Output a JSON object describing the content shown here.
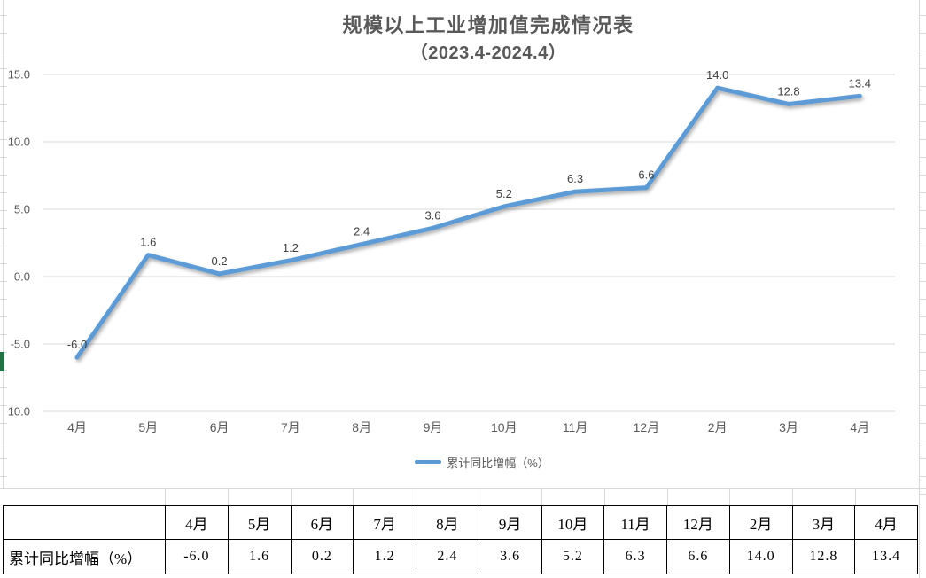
{
  "chart": {
    "title": "规模以上工业增加值完成情况表",
    "subtitle": "（2023.4-2024.4）",
    "legend_label": "累计同比增幅（%）",
    "colors": {
      "line": "#5B9BD5",
      "gridline": "#D9D9D9",
      "axis_text": "#595959",
      "title_text": "#595959",
      "data_label_text": "#404040",
      "selection_green": "#217346",
      "table_border": "#000000"
    }
  },
  "chart_data": {
    "type": "line",
    "title": "规模以上工业增加值完成情况表（2023.4-2024.4）",
    "categories": [
      "4月",
      "5月",
      "6月",
      "7月",
      "8月",
      "9月",
      "10月",
      "11月",
      "12月",
      "2月",
      "3月",
      "4月"
    ],
    "series": [
      {
        "name": "累计同比增幅（%）",
        "values": [
          -6.0,
          1.6,
          0.2,
          1.2,
          2.4,
          3.6,
          5.2,
          6.3,
          6.6,
          14.0,
          12.8,
          13.4
        ]
      }
    ],
    "data_labels": [
      "-6.0",
      "1.6",
      "0.2",
      "1.2",
      "2.4",
      "3.6",
      "5.2",
      "6.3",
      "6.6",
      "14.0",
      "12.8",
      "13.4"
    ],
    "yticks": [
      15,
      10,
      5,
      0,
      -5,
      -10
    ],
    "ytick_labels": [
      "15.0",
      "10.0",
      "5.0",
      "0.0",
      "-5.0",
      "-10.0"
    ],
    "ylim": [
      -10,
      15
    ],
    "xlabel": "",
    "ylabel": "",
    "grid": true,
    "legend_position": "bottom"
  },
  "table": {
    "corner_label": "",
    "row_label": "累计同比增幅（%）",
    "columns": [
      "4月",
      "5月",
      "6月",
      "7月",
      "8月",
      "9月",
      "10月",
      "11月",
      "12月",
      "2月",
      "3月",
      "4月"
    ],
    "values": [
      "-6.0",
      "1.6",
      "0.2",
      "1.2",
      "2.4",
      "3.6",
      "5.2",
      "6.3",
      "6.6",
      "14.0",
      "12.8",
      "13.4"
    ]
  }
}
